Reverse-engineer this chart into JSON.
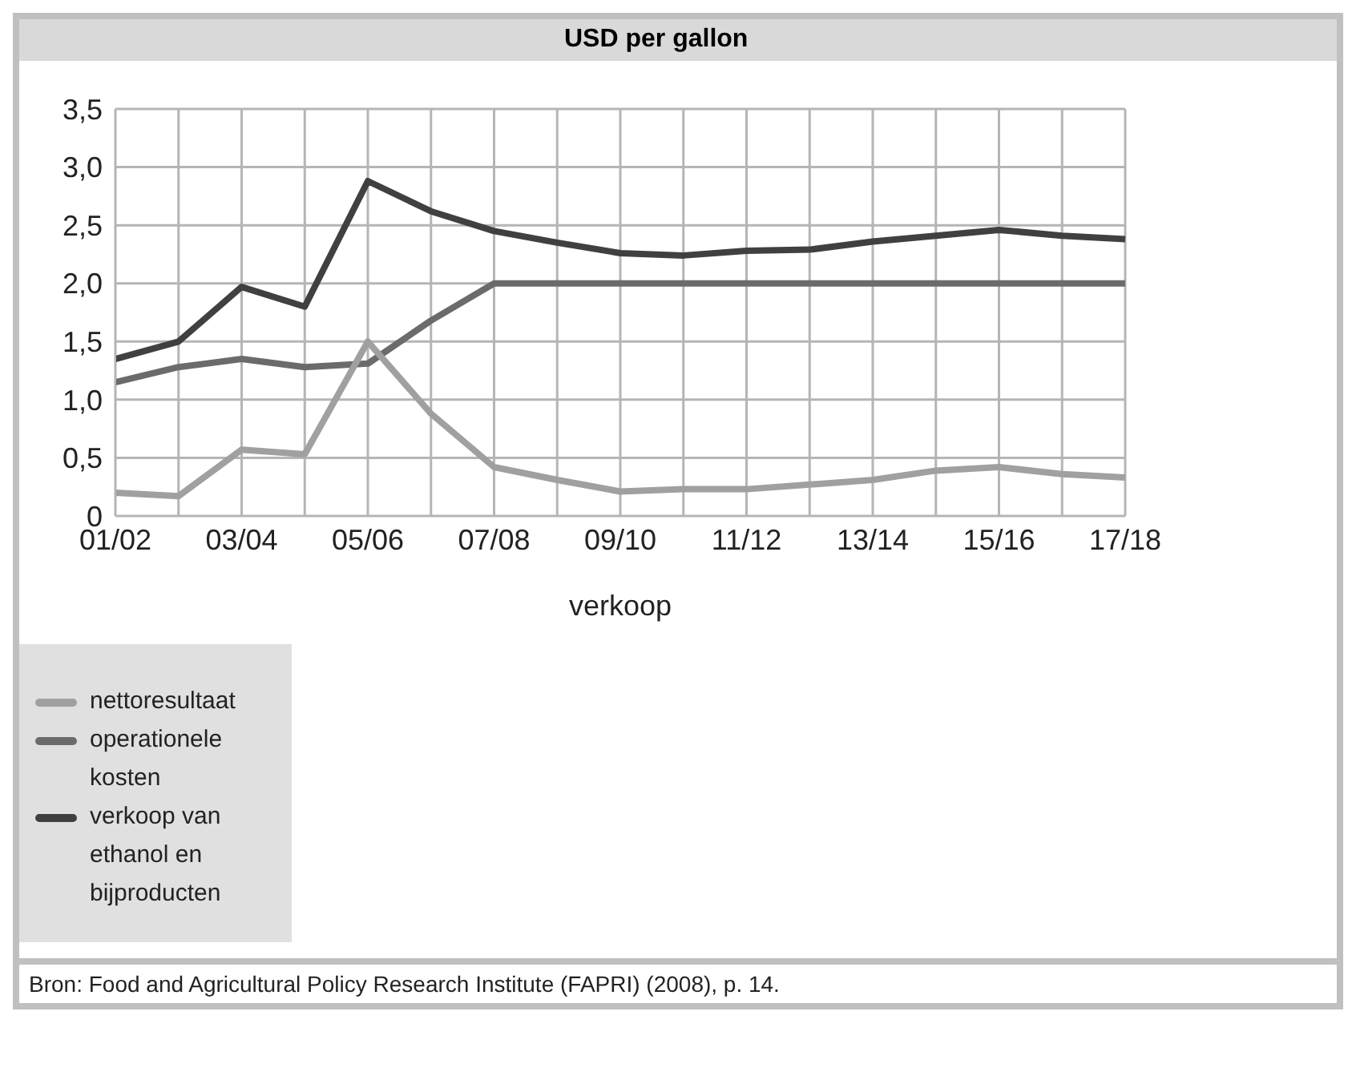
{
  "chart_data": {
    "type": "line",
    "title": "USD per gallon",
    "xlabel": "verkoop",
    "categories": [
      "01/02",
      null,
      "03/04",
      null,
      "05/06",
      null,
      "07/08",
      null,
      "09/10",
      null,
      "11/12",
      null,
      "13/14",
      null,
      "15/16",
      null,
      "17/18"
    ],
    "series": [
      {
        "name": "verkoop van ethanol en bijproducten",
        "color": "#404040",
        "values": [
          1.35,
          1.5,
          1.97,
          1.8,
          2.88,
          2.62,
          2.45,
          2.35,
          2.26,
          2.24,
          2.28,
          2.29,
          2.36,
          2.41,
          2.46,
          2.41,
          2.38
        ]
      },
      {
        "name": "operationele kosten",
        "color": "#6b6b6b",
        "values": [
          1.15,
          1.28,
          1.35,
          1.28,
          1.31,
          1.68,
          2.0,
          2.0,
          2.0,
          2.0,
          2.0,
          2.0,
          2.0,
          2.0,
          2.0,
          2.0,
          2.0
        ]
      },
      {
        "name": "nettoresultaat",
        "color": "#a0a0a0",
        "values": [
          0.2,
          0.17,
          0.57,
          0.53,
          1.5,
          0.88,
          0.42,
          0.31,
          0.21,
          0.23,
          0.23,
          0.27,
          0.31,
          0.39,
          0.42,
          0.36,
          0.33
        ]
      }
    ],
    "ylim": [
      0,
      3.5
    ],
    "yticks": [
      0,
      {
        "value": 0.5,
        "label": "0,5"
      },
      {
        "value": 1,
        "label": "1,0"
      },
      {
        "value": 1.5,
        "label": "1,5"
      },
      {
        "value": 2,
        "label": "2,0"
      },
      {
        "value": 2.5,
        "label": "2,5"
      },
      {
        "value": 3,
        "label": "3,0"
      },
      {
        "value": 3.5,
        "label": "3,5"
      }
    ],
    "grid": true,
    "legend": "bottom left",
    "marker": "none",
    "line_style": "solid",
    "annotations": [
      "Bron: Food and Agricultural Policy Research Institute (FAPRI) (2008), p. 14."
    ]
  }
}
